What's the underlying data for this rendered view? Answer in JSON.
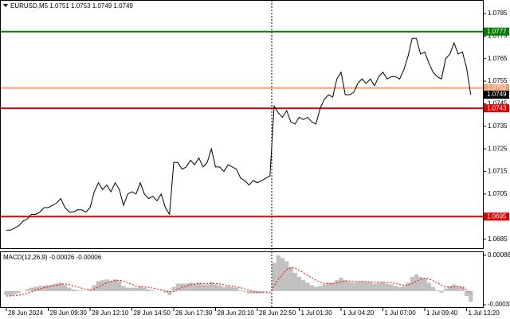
{
  "chart_data": [
    {
      "type": "line",
      "title": "EURUSD,M5  1.0751 1.0753 1.0749 1.0749",
      "color": "#000000",
      "values": [
        1.0689,
        1.0689,
        1.069,
        1.0691,
        1.0693,
        1.0694,
        1.0696,
        1.0696,
        1.0697,
        1.0699,
        1.0699,
        1.07,
        1.0701,
        1.0703,
        1.0699,
        1.0697,
        1.0697,
        1.0698,
        1.0698,
        1.0697,
        1.0699,
        1.0706,
        1.071,
        1.0707,
        1.0709,
        1.0706,
        1.071,
        1.0707,
        1.07,
        1.0705,
        1.0706,
        1.0705,
        1.071,
        1.0705,
        1.0703,
        1.0704,
        1.0702,
        1.0705,
        1.0699,
        1.0696,
        1.0719,
        1.0719,
        1.0716,
        1.0717,
        1.072,
        1.0718,
        1.0721,
        1.0717,
        1.0719,
        1.0725,
        1.0717,
        1.0717,
        1.0715,
        1.0718,
        1.0717,
        1.0716,
        1.0712,
        1.0711,
        1.0709,
        1.0711,
        1.071,
        1.0711,
        1.0712,
        1.0713,
        1.0744,
        1.0741,
        1.0739,
        1.0742,
        1.0737,
        1.0736,
        1.0739,
        1.0738,
        1.0739,
        1.0737,
        1.0736,
        1.0743,
        1.0747,
        1.0749,
        1.0748,
        1.0756,
        1.0759,
        1.0749,
        1.0749,
        1.075,
        1.0754,
        1.0756,
        1.0754,
        1.0756,
        1.0753,
        1.0757,
        1.0759,
        1.0756,
        1.0757,
        1.0757,
        1.0756,
        1.076,
        1.0766,
        1.0774,
        1.0774,
        1.0767,
        1.0768,
        1.0763,
        1.0759,
        1.0757,
        1.0756,
        1.0765,
        1.0767,
        1.0772,
        1.0767,
        1.0768,
        1.0761,
        1.0749
      ],
      "ylim": [
        1.0681,
        1.0791
      ],
      "yticks": [
        1.0785,
        1.0775,
        1.0765,
        1.0755,
        1.0745,
        1.0735,
        1.0725,
        1.0715,
        1.0705,
        1.0695,
        1.0685
      ],
      "levels": [
        {
          "value": 1.0777,
          "color": "#008000"
        },
        {
          "value": 1.0752,
          "color": "#f0a070"
        },
        {
          "value": 1.0743,
          "color": "#e00000"
        },
        {
          "value": 1.0695,
          "color": "#e00000"
        }
      ],
      "last_price": 1.0749
    },
    {
      "type": "macd",
      "title": "MACD(12,26,9) -0.00026 -0.00006",
      "categories": [
        "28 Jun 2024",
        null,
        null,
        null,
        null,
        null,
        null,
        null,
        null,
        null,
        "28 Jun 09:30",
        null,
        null,
        null,
        null,
        null,
        null,
        null,
        null,
        null,
        "28 Jun 12:10",
        null,
        null,
        null,
        null,
        null,
        null,
        null,
        null,
        null,
        "28 Jun 14:50",
        null,
        null,
        null,
        null,
        null,
        null,
        null,
        null,
        null,
        "28 Jun 17:30",
        null,
        null,
        null,
        null,
        null,
        null,
        null,
        null,
        null,
        "28 Jun 20:10",
        null,
        null,
        null,
        null,
        null,
        null,
        null,
        null,
        null,
        "28 Jun 22:50",
        null,
        null,
        null,
        null,
        null,
        null,
        null,
        null,
        null,
        "1 Jul 01:30",
        null,
        null,
        null,
        null,
        null,
        null,
        null,
        null,
        null,
        "1 Jul 04:20",
        null,
        null,
        null,
        null,
        null,
        null,
        null,
        null,
        null,
        "1 Jul 07:00",
        null,
        null,
        null,
        null,
        null,
        null,
        null,
        null,
        null,
        "1 Jul 09:40",
        null,
        null,
        null,
        null,
        null,
        null,
        null,
        null,
        null,
        "1 Jul 12:20",
        null
      ],
      "ylim": [
        -0.00033,
        0.00086
      ],
      "yticks": [
        0.00086,
        -0.00033
      ],
      "series": [
        {
          "color": "#c0c0c0",
          "values": [
            -0.0001,
            -0.00012,
            -8e-05,
            -4e-05,
            0,
            4e-05,
            8e-05,
            0.0001,
            0.00012,
            0.00013,
            0.00014,
            0.00016,
            0.00018,
            0.0002,
            0.00014,
            8e-05,
            4e-05,
            2e-05,
            1e-05,
            0,
            4e-05,
            0.00014,
            0.00024,
            0.00026,
            0.00028,
            0.00025,
            0.00028,
            0.00024,
            0.00012,
            8e-05,
            8e-05,
            8e-05,
            0.00012,
            8e-05,
            4e-05,
            2e-05,
            0,
            1e-05,
            -4e-05,
            -0.0001,
            0.0001,
            0.00018,
            0.00018,
            0.00018,
            0.0002,
            0.00018,
            0.0002,
            0.00016,
            0.00016,
            0.00022,
            0.00016,
            0.00014,
            0.0001,
            0.00012,
            0.0001,
            8e-05,
            2e-05,
            -2e-05,
            -6e-05,
            -6e-05,
            -6e-05,
            -4e-05,
            -2e-05,
            0,
            0.00068,
            0.00086,
            0.0008,
            0.00072,
            0.00058,
            0.00044,
            0.00034,
            0.00026,
            0.0002,
            0.00014,
            0.0001,
            0.00012,
            0.00016,
            0.0002,
            0.0002,
            0.00026,
            0.00032,
            0.00026,
            0.00022,
            0.0002,
            0.00022,
            0.00024,
            0.00022,
            0.00022,
            0.00018,
            0.0002,
            0.00022,
            0.00018,
            0.00016,
            0.00012,
            0.0001,
            0.00012,
            0.0002,
            0.00034,
            0.0004,
            0.00034,
            0.0003,
            0.0002,
            0.0001,
            2e-05,
            -4e-05,
            6e-05,
            0.00012,
            0.00016,
            0.00012,
            0.0001,
            -0.00012,
            -0.00026
          ]
        },
        {
          "color": "#ff0000",
          "values": [
            -0.00012,
            -0.00012,
            -0.00011,
            -0.0001,
            -8e-05,
            -5e-05,
            -2e-05,
            2e-05,
            5e-05,
            8e-05,
            0.0001,
            0.00012,
            0.00014,
            0.00016,
            0.00017,
            0.00016,
            0.00013,
            0.0001,
            7e-05,
            4e-05,
            3e-05,
            5e-05,
            0.0001,
            0.00015,
            0.0002,
            0.00023,
            0.00025,
            0.00026,
            0.00024,
            0.0002,
            0.00016,
            0.00012,
            0.0001,
            0.0001,
            9e-05,
            7e-05,
            5e-05,
            3e-05,
            1e-05,
            -2e-05,
            -1e-05,
            4e-05,
            9e-05,
            0.00012,
            0.00015,
            0.00017,
            0.00018,
            0.00018,
            0.00018,
            0.00018,
            0.00018,
            0.00017,
            0.00015,
            0.00013,
            0.00012,
            0.0001,
            8e-05,
            5e-05,
            2e-05,
            -1e-05,
            -3e-05,
            -4e-05,
            -4e-05,
            -3e-05,
            0.00012,
            0.00028,
            0.0004,
            0.00052,
            0.00056,
            0.00055,
            0.0005,
            0.00044,
            0.00038,
            0.00032,
            0.00026,
            0.00021,
            0.00018,
            0.00018,
            0.00018,
            0.0002,
            0.00022,
            0.00024,
            0.00024,
            0.00023,
            0.00023,
            0.00023,
            0.00023,
            0.00022,
            0.00022,
            0.00021,
            0.00021,
            0.00021,
            0.0002,
            0.00018,
            0.00016,
            0.00014,
            0.00014,
            0.00018,
            0.00024,
            0.00028,
            0.0003,
            0.00029,
            0.00025,
            0.0002,
            0.00014,
            0.0001,
            9e-05,
            0.0001,
            0.00011,
            9e-05,
            3e-05,
            -6e-05
          ]
        }
      ]
    }
  ]
}
